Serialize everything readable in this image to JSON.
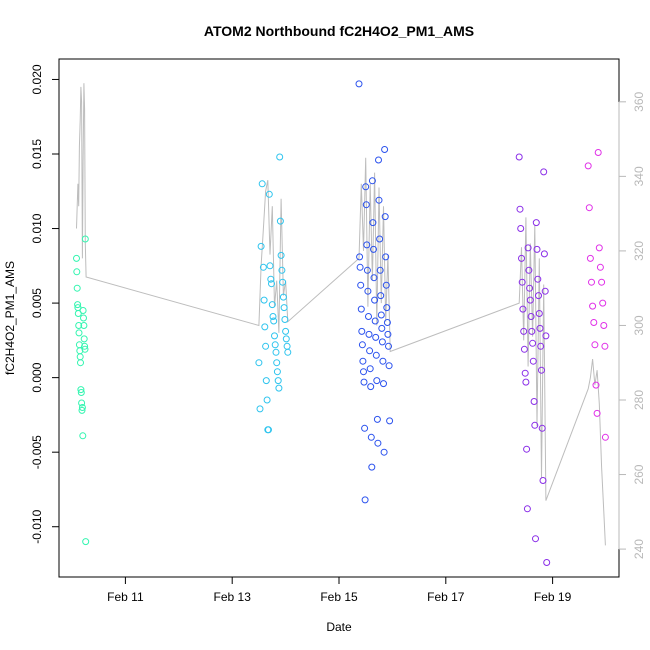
{
  "chart_data": {
    "type": "scatter",
    "title": "ATOM2 Northbound fC2H4O2_PM1_AMS",
    "xlabel": "Date",
    "ylabel": "fC2H4O2_PM1_AMS",
    "x_ticks": [
      "Feb 11",
      "Feb 13",
      "Feb 15",
      "Feb 17",
      "Feb 19"
    ],
    "y_ticks": [
      "-0.010",
      "-0.005",
      "0.000",
      "0.005",
      "0.010",
      "0.015",
      "0.020"
    ],
    "y_right_ticks": [
      "240",
      "260",
      "280",
      "300",
      "320",
      "340",
      "360"
    ],
    "xlim": [
      "2010-02-10 00:00",
      "2010-02-20 00:00"
    ],
    "ylim": [
      -0.0125,
      0.0205
    ],
    "y_right_lim": [
      236,
      368
    ],
    "series": [
      {
        "color": "#33f5b0",
        "points": [
          [
            "2010-02-10 02:00",
            0.008
          ],
          [
            "2010-02-10 02:10",
            0.0071
          ],
          [
            "2010-02-10 02:20",
            0.006
          ],
          [
            "2010-02-10 02:30",
            0.0049
          ],
          [
            "2010-02-10 02:40",
            0.0047
          ],
          [
            "2010-02-10 02:50",
            0.0043
          ],
          [
            "2010-02-10 03:00",
            0.0035
          ],
          [
            "2010-02-10 03:10",
            0.003
          ],
          [
            "2010-02-10 03:20",
            0.0022
          ],
          [
            "2010-02-10 03:30",
            0.0018
          ],
          [
            "2010-02-10 03:40",
            0.0014
          ],
          [
            "2010-02-10 03:50",
            0.001
          ],
          [
            "2010-02-10 04:00",
            -0.0008
          ],
          [
            "2010-02-10 04:10",
            -0.001
          ],
          [
            "2010-02-10 04:20",
            -0.0017
          ],
          [
            "2010-02-10 04:30",
            -0.0022
          ],
          [
            "2010-02-10 04:40",
            -0.002
          ],
          [
            "2010-02-10 04:50",
            -0.0039
          ],
          [
            "2010-02-10 05:00",
            0.0045
          ],
          [
            "2010-02-10 05:10",
            0.004
          ],
          [
            "2010-02-10 05:20",
            0.0035
          ],
          [
            "2010-02-10 05:30",
            0.0026
          ],
          [
            "2010-02-10 05:40",
            0.0021
          ],
          [
            "2010-02-10 05:50",
            0.0019
          ],
          [
            "2010-02-10 06:00",
            0.0093
          ],
          [
            "2010-02-10 06:10",
            -0.011
          ]
        ]
      },
      {
        "color": "#2ec4ee",
        "points": [
          [
            "2010-02-13 12:00",
            0.001
          ],
          [
            "2010-02-13 12:30",
            -0.0021
          ],
          [
            "2010-02-13 13:00",
            0.0088
          ],
          [
            "2010-02-13 13:30",
            0.013
          ],
          [
            "2010-02-13 14:00",
            0.0074
          ],
          [
            "2010-02-13 14:20",
            0.0052
          ],
          [
            "2010-02-13 14:40",
            0.0034
          ],
          [
            "2010-02-13 15:00",
            0.0021
          ],
          [
            "2010-02-13 15:20",
            -0.0002
          ],
          [
            "2010-02-13 15:40",
            -0.0015
          ],
          [
            "2010-02-13 16:00",
            -0.0035
          ],
          [
            "2010-02-13 16:20",
            -0.0035
          ],
          [
            "2010-02-13 16:40",
            0.0123
          ],
          [
            "2010-02-13 17:00",
            0.0075
          ],
          [
            "2010-02-13 17:20",
            0.0066
          ],
          [
            "2010-02-13 17:40",
            0.0063
          ],
          [
            "2010-02-13 18:00",
            0.0049
          ],
          [
            "2010-02-13 18:20",
            0.0041
          ],
          [
            "2010-02-13 18:40",
            0.0038
          ],
          [
            "2010-02-13 19:00",
            0.0028
          ],
          [
            "2010-02-13 19:20",
            0.0022
          ],
          [
            "2010-02-13 19:40",
            0.0017
          ],
          [
            "2010-02-13 20:00",
            0.001
          ],
          [
            "2010-02-13 20:20",
            0.0004
          ],
          [
            "2010-02-13 20:40",
            -0.0002
          ],
          [
            "2010-02-13 21:00",
            -0.0007
          ],
          [
            "2010-02-13 21:20",
            0.0148
          ],
          [
            "2010-02-13 21:40",
            0.0105
          ],
          [
            "2010-02-13 22:00",
            0.0082
          ],
          [
            "2010-02-13 22:20",
            0.0072
          ],
          [
            "2010-02-13 22:40",
            0.0064
          ],
          [
            "2010-02-13 23:00",
            0.0054
          ],
          [
            "2010-02-13 23:20",
            0.0047
          ],
          [
            "2010-02-13 23:40",
            0.0039
          ],
          [
            "2010-02-14 00:00",
            0.0031
          ],
          [
            "2010-02-14 00:20",
            0.0026
          ],
          [
            "2010-02-14 00:40",
            0.0021
          ],
          [
            "2010-02-14 01:00",
            0.0017
          ]
        ]
      },
      {
        "color": "#2b52ee",
        "points": [
          [
            "2010-02-15 09:00",
            0.0197
          ],
          [
            "2010-02-15 09:15",
            0.0081
          ],
          [
            "2010-02-15 09:30",
            0.0074
          ],
          [
            "2010-02-15 09:45",
            0.0062
          ],
          [
            "2010-02-15 10:00",
            0.0046
          ],
          [
            "2010-02-15 10:15",
            0.0031
          ],
          [
            "2010-02-15 10:30",
            0.0022
          ],
          [
            "2010-02-15 10:45",
            0.0011
          ],
          [
            "2010-02-15 11:00",
            0.0004
          ],
          [
            "2010-02-15 11:15",
            -0.0003
          ],
          [
            "2010-02-15 11:30",
            -0.0034
          ],
          [
            "2010-02-15 11:45",
            -0.0082
          ],
          [
            "2010-02-15 12:00",
            0.0128
          ],
          [
            "2010-02-15 12:15",
            0.0116
          ],
          [
            "2010-02-15 12:30",
            0.0089
          ],
          [
            "2010-02-15 12:45",
            0.0072
          ],
          [
            "2010-02-15 13:00",
            0.0058
          ],
          [
            "2010-02-15 13:15",
            0.0041
          ],
          [
            "2010-02-15 13:30",
            0.0029
          ],
          [
            "2010-02-15 13:45",
            0.0018
          ],
          [
            "2010-02-15 14:00",
            0.0006
          ],
          [
            "2010-02-15 14:15",
            -0.0006
          ],
          [
            "2010-02-15 14:30",
            -0.004
          ],
          [
            "2010-02-15 14:45",
            -0.006
          ],
          [
            "2010-02-15 15:00",
            0.0132
          ],
          [
            "2010-02-15 15:15",
            0.0104
          ],
          [
            "2010-02-15 15:30",
            0.0086
          ],
          [
            "2010-02-15 15:45",
            0.0067
          ],
          [
            "2010-02-15 16:00",
            0.0052
          ],
          [
            "2010-02-15 16:15",
            0.0038
          ],
          [
            "2010-02-15 16:30",
            0.0027
          ],
          [
            "2010-02-15 16:45",
            0.0015
          ],
          [
            "2010-02-15 17:00",
            -0.0002
          ],
          [
            "2010-02-15 17:15",
            -0.0028
          ],
          [
            "2010-02-15 17:30",
            -0.0044
          ],
          [
            "2010-02-15 17:45",
            0.0146
          ],
          [
            "2010-02-15 18:00",
            0.0119
          ],
          [
            "2010-02-15 18:15",
            0.0093
          ],
          [
            "2010-02-15 18:30",
            0.0072
          ],
          [
            "2010-02-15 18:45",
            0.0055
          ],
          [
            "2010-02-15 19:00",
            0.0042
          ],
          [
            "2010-02-15 19:15",
            0.0033
          ],
          [
            "2010-02-15 19:30",
            0.0024
          ],
          [
            "2010-02-15 19:45",
            0.0011
          ],
          [
            "2010-02-15 20:00",
            -0.0004
          ],
          [
            "2010-02-15 20:15",
            -0.005
          ],
          [
            "2010-02-15 20:30",
            0.0153
          ],
          [
            "2010-02-15 20:45",
            0.0108
          ],
          [
            "2010-02-15 21:00",
            0.0081
          ],
          [
            "2010-02-15 21:15",
            0.0062
          ],
          [
            "2010-02-15 21:30",
            0.0047
          ],
          [
            "2010-02-15 21:45",
            0.0037
          ],
          [
            "2010-02-15 22:00",
            0.0029
          ],
          [
            "2010-02-15 22:15",
            0.0021
          ],
          [
            "2010-02-15 22:30",
            0.0008
          ],
          [
            "2010-02-15 22:45",
            -0.0029
          ]
        ]
      },
      {
        "color": "#8a2ee8",
        "points": [
          [
            "2010-02-18 09:00",
            0.0148
          ],
          [
            "2010-02-18 09:20",
            0.0113
          ],
          [
            "2010-02-18 09:40",
            0.01
          ],
          [
            "2010-02-18 10:00",
            0.008
          ],
          [
            "2010-02-18 10:20",
            0.0064
          ],
          [
            "2010-02-18 10:40",
            0.0046
          ],
          [
            "2010-02-18 11:00",
            0.0031
          ],
          [
            "2010-02-18 11:20",
            0.0019
          ],
          [
            "2010-02-18 11:40",
            0.0003
          ],
          [
            "2010-02-18 12:00",
            -0.0003
          ],
          [
            "2010-02-18 12:20",
            -0.0048
          ],
          [
            "2010-02-18 12:40",
            -0.0088
          ],
          [
            "2010-02-18 13:00",
            0.0087
          ],
          [
            "2010-02-18 13:20",
            0.0072
          ],
          [
            "2010-02-18 13:40",
            0.006
          ],
          [
            "2010-02-18 14:00",
            0.0052
          ],
          [
            "2010-02-18 14:20",
            0.0041
          ],
          [
            "2010-02-18 14:40",
            0.0031
          ],
          [
            "2010-02-18 15:00",
            0.0023
          ],
          [
            "2010-02-18 15:20",
            0.0011
          ],
          [
            "2010-02-18 15:40",
            -0.0016
          ],
          [
            "2010-02-18 16:00",
            -0.0032
          ],
          [
            "2010-02-18 16:20",
            -0.0108
          ],
          [
            "2010-02-18 16:40",
            0.0104
          ],
          [
            "2010-02-18 17:00",
            0.0086
          ],
          [
            "2010-02-18 17:20",
            0.0066
          ],
          [
            "2010-02-18 17:40",
            0.0055
          ],
          [
            "2010-02-18 18:00",
            0.0043
          ],
          [
            "2010-02-18 18:20",
            0.0033
          ],
          [
            "2010-02-18 18:40",
            0.0021
          ],
          [
            "2010-02-18 19:00",
            0.0005
          ],
          [
            "2010-02-18 19:20",
            -0.0034
          ],
          [
            "2010-02-18 19:40",
            -0.0069
          ],
          [
            "2010-02-18 20:00",
            0.0138
          ],
          [
            "2010-02-18 20:20",
            0.0083
          ],
          [
            "2010-02-18 20:40",
            0.0058
          ],
          [
            "2010-02-18 21:00",
            0.0028
          ],
          [
            "2010-02-18 21:20",
            -0.0124
          ]
        ]
      },
      {
        "color": "#e030e8",
        "points": [
          [
            "2010-02-19 16:00",
            0.0142
          ],
          [
            "2010-02-19 16:30",
            0.0114
          ],
          [
            "2010-02-19 17:00",
            0.008
          ],
          [
            "2010-02-19 17:30",
            0.0064
          ],
          [
            "2010-02-19 18:00",
            0.0048
          ],
          [
            "2010-02-19 18:30",
            0.0037
          ],
          [
            "2010-02-19 19:00",
            0.0022
          ],
          [
            "2010-02-19 19:30",
            -0.0005
          ],
          [
            "2010-02-19 20:00",
            -0.0024
          ],
          [
            "2010-02-19 20:30",
            0.0151
          ],
          [
            "2010-02-19 21:00",
            0.0087
          ],
          [
            "2010-02-19 21:30",
            0.0074
          ],
          [
            "2010-02-19 22:00",
            0.0064
          ],
          [
            "2010-02-19 22:30",
            0.005
          ],
          [
            "2010-02-19 23:00",
            0.0035
          ],
          [
            "2010-02-19 23:30",
            0.0021
          ],
          [
            "2010-02-19 23:45",
            -0.004
          ]
        ]
      }
    ],
    "right_axis_trace": {
      "color": "#bdbdbd",
      "points": [
        [
          "2010-02-10 02:00",
          326
        ],
        [
          "2010-02-10 02:40",
          338
        ],
        [
          "2010-02-10 03:00",
          332
        ],
        [
          "2010-02-10 03:20",
          348
        ],
        [
          "2010-02-10 03:40",
          355
        ],
        [
          "2010-02-10 04:00",
          364
        ],
        [
          "2010-02-10 04:20",
          360
        ],
        [
          "2010-02-10 04:40",
          318
        ],
        [
          "2010-02-10 05:00",
          344
        ],
        [
          "2010-02-10 05:20",
          365
        ],
        [
          "2010-02-10 05:40",
          358
        ],
        [
          "2010-02-10 06:00",
          322
        ],
        [
          "2010-02-10 06:20",
          313
        ],
        [
          "2010-02-13 12:00",
          300
        ],
        [
          "2010-02-13 13:00",
          316
        ],
        [
          "2010-02-13 14:00",
          326
        ],
        [
          "2010-02-13 15:00",
          336
        ],
        [
          "2010-02-13 16:00",
          339
        ],
        [
          "2010-02-13 17:00",
          319
        ],
        [
          "2010-02-13 18:00",
          332
        ],
        [
          "2010-02-13 19:00",
          305
        ],
        [
          "2010-02-13 20:00",
          312
        ],
        [
          "2010-02-13 21:00",
          298
        ],
        [
          "2010-02-13 22:00",
          334
        ],
        [
          "2010-02-13 23:00",
          308
        ],
        [
          "2010-02-14 00:00",
          312
        ],
        [
          "2010-02-14 01:00",
          301
        ],
        [
          "2010-02-15 09:00",
          318
        ],
        [
          "2010-02-15 10:00",
          338
        ],
        [
          "2010-02-15 11:00",
          320
        ],
        [
          "2010-02-15 12:00",
          345
        ],
        [
          "2010-02-15 13:00",
          305
        ],
        [
          "2010-02-15 14:00",
          338
        ],
        [
          "2010-02-15 15:00",
          312
        ],
        [
          "2010-02-15 16:00",
          341
        ],
        [
          "2010-02-15 17:00",
          300
        ],
        [
          "2010-02-15 18:00",
          337
        ],
        [
          "2010-02-15 19:00",
          306
        ],
        [
          "2010-02-15 20:00",
          332
        ],
        [
          "2010-02-15 21:00",
          301
        ],
        [
          "2010-02-15 22:00",
          319
        ],
        [
          "2010-02-15 23:00",
          293
        ],
        [
          "2010-02-18 09:00",
          306
        ],
        [
          "2010-02-18 10:00",
          321
        ],
        [
          "2010-02-18 11:00",
          296
        ],
        [
          "2010-02-18 12:00",
          329
        ],
        [
          "2010-02-18 13:00",
          289
        ],
        [
          "2010-02-18 14:00",
          322
        ],
        [
          "2010-02-18 15:00",
          297
        ],
        [
          "2010-02-18 16:00",
          327
        ],
        [
          "2010-02-18 17:00",
          273
        ],
        [
          "2010-02-18 18:00",
          318
        ],
        [
          "2010-02-18 19:00",
          259
        ],
        [
          "2010-02-18 20:00",
          311
        ],
        [
          "2010-02-18 21:00",
          253
        ],
        [
          "2010-02-19 16:00",
          283
        ],
        [
          "2010-02-19 17:00",
          286
        ],
        [
          "2010-02-19 18:00",
          291
        ],
        [
          "2010-02-19 19:00",
          284
        ],
        [
          "2010-02-19 20:00",
          288
        ],
        [
          "2010-02-19 21:00",
          279
        ],
        [
          "2010-02-19 22:00",
          262
        ],
        [
          "2010-02-19 23:00",
          250
        ],
        [
          "2010-02-19 23:45",
          241
        ]
      ]
    }
  }
}
